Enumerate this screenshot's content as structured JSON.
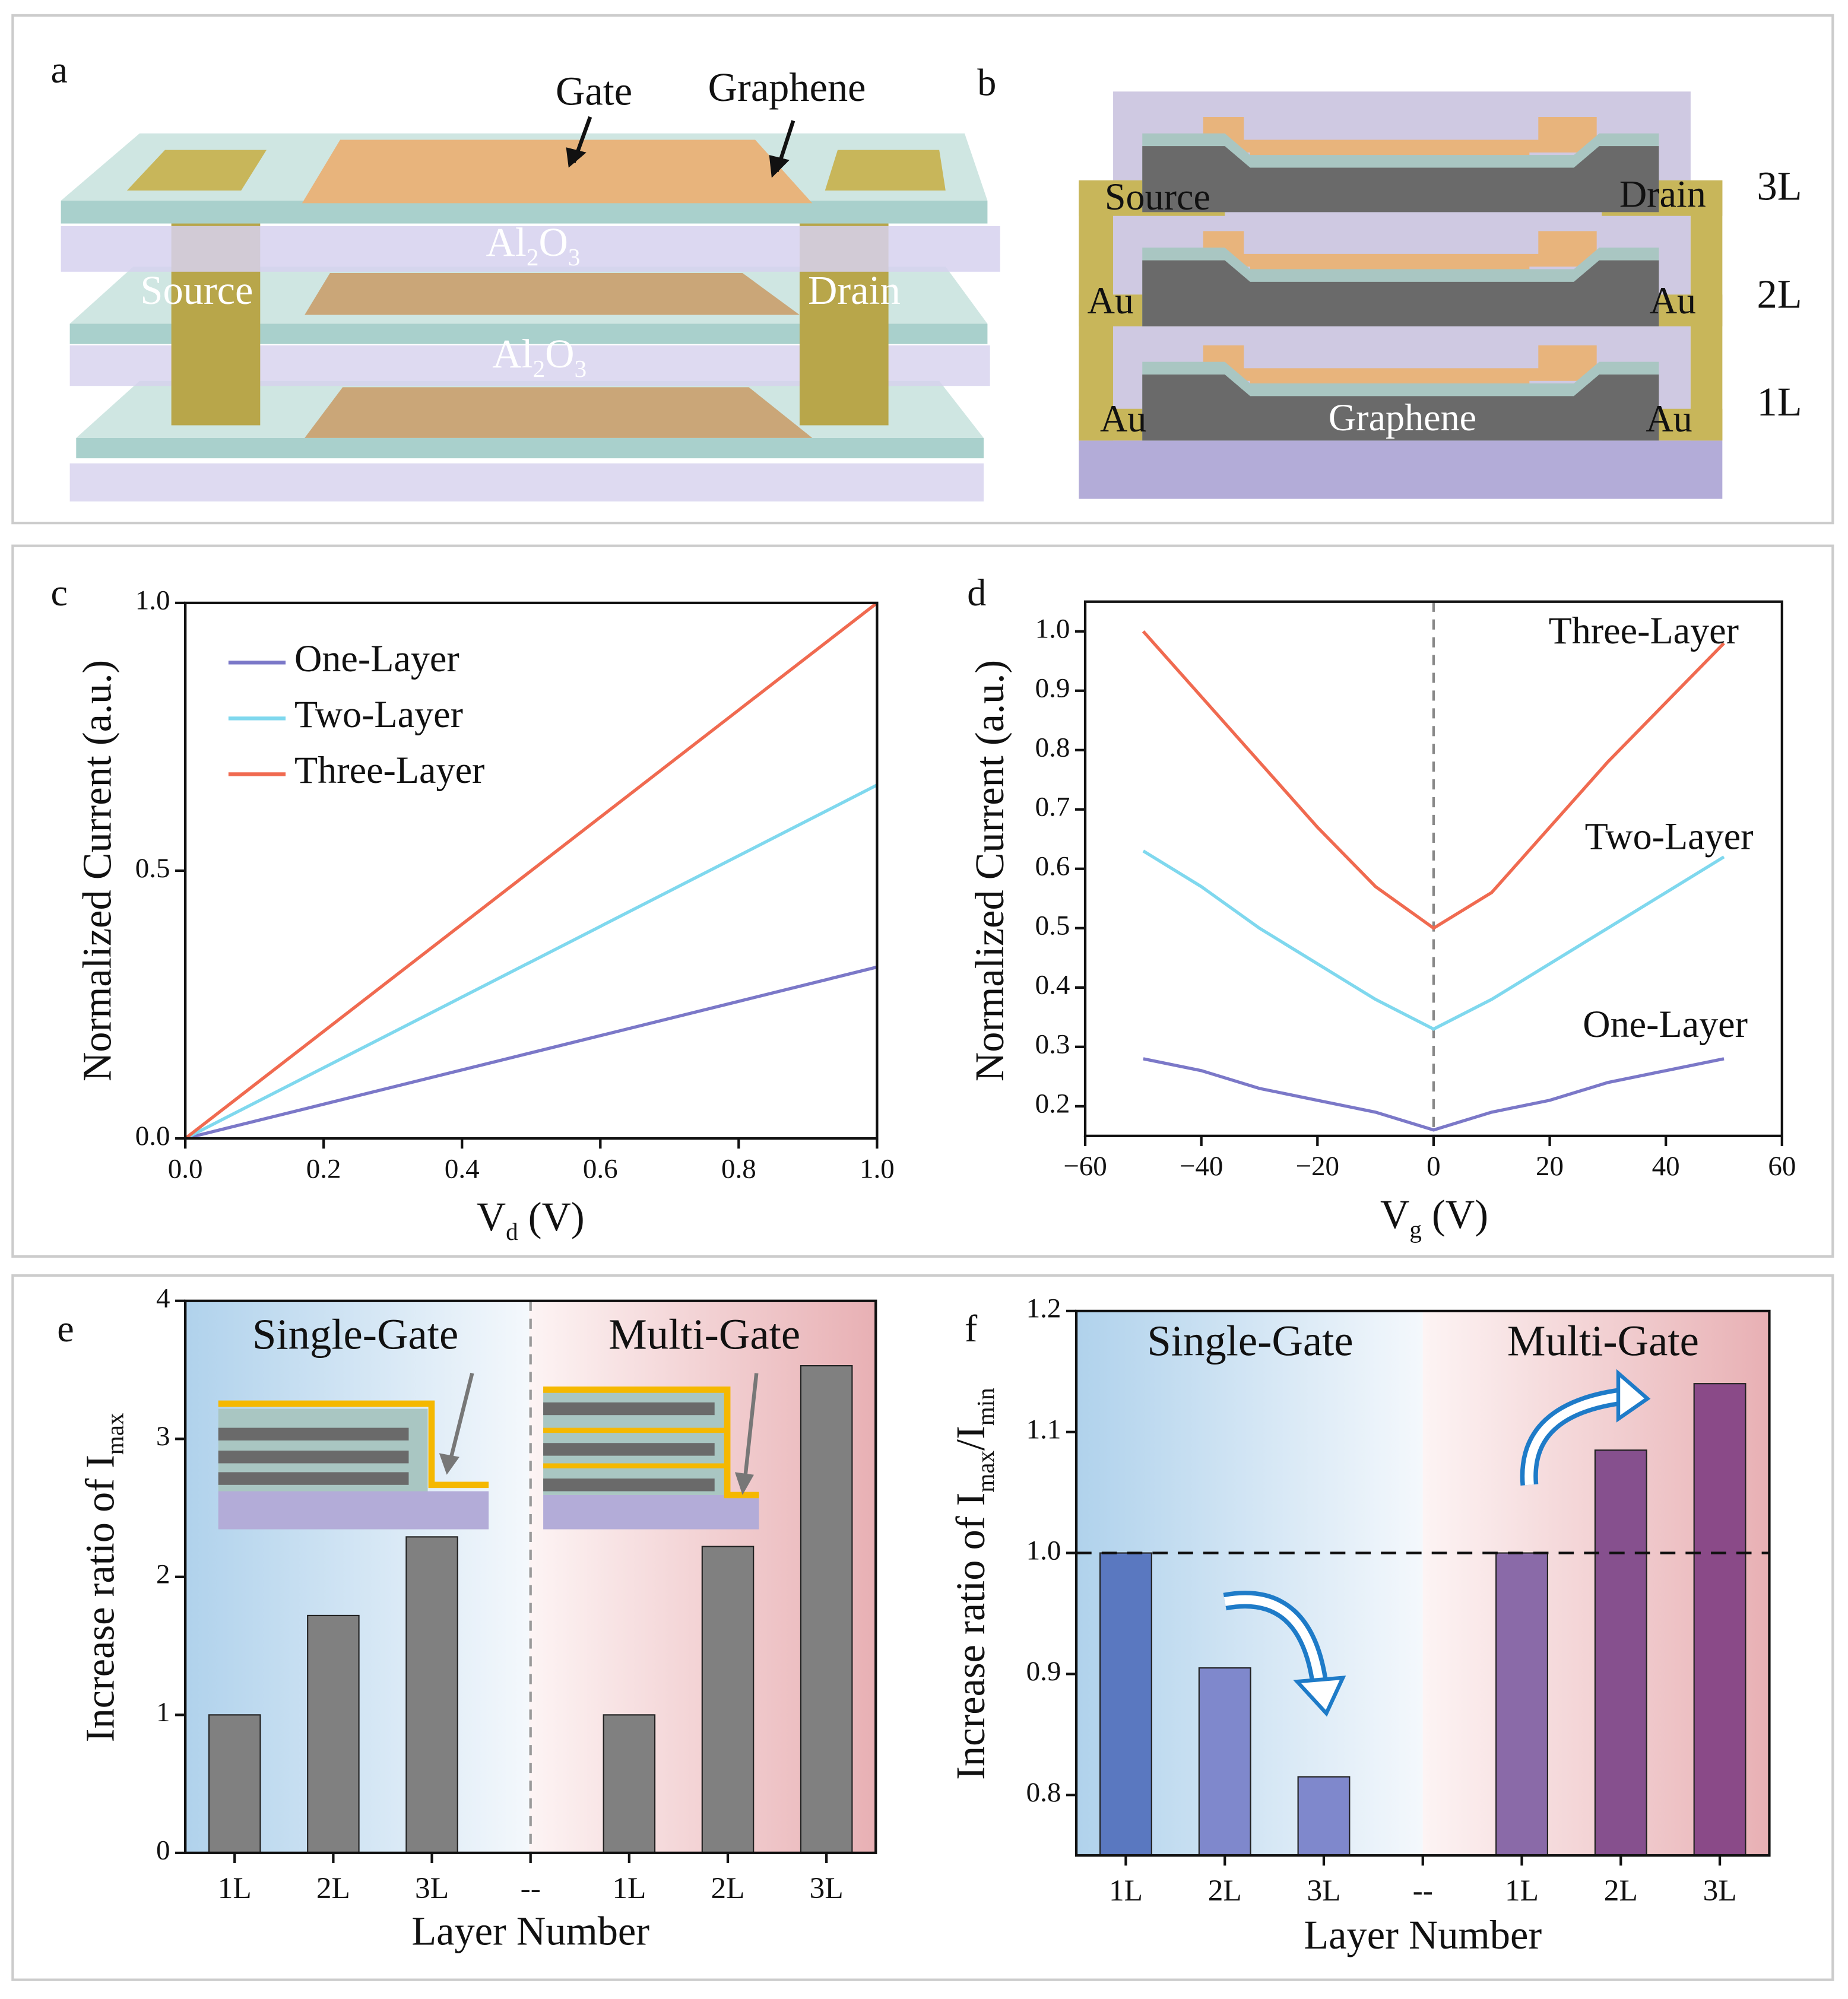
{
  "diagrams": [
    {
      "label": "a",
      "texts": [
        "Gate",
        "Graphene",
        "Source",
        "Drain"
      ],
      "oxide": [
        [
          "Al",
          "2",
          "O",
          "3"
        ],
        [
          "Al",
          "2",
          "O",
          "3"
        ]
      ]
    },
    {
      "label": "b",
      "texts": [
        "Source",
        "Drain",
        "3L",
        "Au",
        "Au",
        "2L",
        "Au",
        "Graphene",
        "Au",
        "1L"
      ]
    }
  ],
  "chart_data": [
    {
      "label": "c",
      "type": "line",
      "xlabel": [
        "V",
        "d",
        " (V)"
      ],
      "ylabel": "Normalized Current (a.u.)",
      "x": [
        0,
        0.2,
        0.4,
        0.6,
        0.8,
        1.0
      ],
      "series": [
        {
          "name": "One-Layer",
          "color": "#7b78c8",
          "values": [
            0,
            0.064,
            0.128,
            0.192,
            0.256,
            0.32
          ]
        },
        {
          "name": "Two-Layer",
          "color": "#7fd8ee",
          "values": [
            0,
            0.132,
            0.264,
            0.396,
            0.528,
            0.66
          ]
        },
        {
          "name": "Three-Layer",
          "color": "#f06a50",
          "values": [
            0,
            0.2,
            0.4,
            0.6,
            0.8,
            1.0
          ]
        }
      ],
      "xlim": [
        0,
        1
      ],
      "ylim": [
        0,
        1
      ],
      "xticks": [
        {
          "value": 0,
          "label": "0.0"
        },
        0.2,
        0.4,
        0.6,
        0.8,
        {
          "value": 1,
          "label": "1.0"
        }
      ],
      "yticks": [
        {
          "value": 0,
          "label": "0.0"
        },
        0.5,
        {
          "value": 1,
          "label": "1.0"
        }
      ],
      "legend": "upper left"
    },
    {
      "label": "d",
      "type": "line",
      "xlabel": [
        "V",
        "g",
        " (V)"
      ],
      "ylabel": "Normalized Current (a.u.)",
      "x": [
        -50,
        -40,
        -30,
        -20,
        -10,
        0,
        10,
        20,
        30,
        40,
        50
      ],
      "series": [
        {
          "name": "Three-Layer",
          "color": "#f06a50",
          "values": [
            1.0,
            0.89,
            0.78,
            0.67,
            0.57,
            0.5,
            0.56,
            0.67,
            0.78,
            0.88,
            0.98
          ]
        },
        {
          "name": "Two-Layer",
          "color": "#7fd8ee",
          "values": [
            0.63,
            0.57,
            0.5,
            0.44,
            0.38,
            0.33,
            0.38,
            0.44,
            0.5,
            0.56,
            0.62
          ]
        },
        {
          "name": "One-Layer",
          "color": "#7b78c8",
          "values": [
            0.28,
            0.26,
            0.23,
            0.21,
            0.19,
            0.16,
            0.19,
            0.21,
            0.24,
            0.26,
            0.28
          ]
        }
      ],
      "xlim": [
        -60,
        60
      ],
      "ylim": [
        0.15,
        1.05
      ],
      "xticks": [
        {
          "value": -60,
          "label": "−60"
        },
        {
          "value": -40,
          "label": "−40"
        },
        {
          "value": -20,
          "label": "−20"
        },
        0,
        20,
        40,
        60
      ],
      "yticks": [
        0.2,
        0.3,
        0.4,
        0.5,
        0.6,
        0.7,
        0.8,
        0.9,
        {
          "value": 1,
          "label": "1.0"
        }
      ],
      "vline": 0,
      "legend": "inline"
    },
    {
      "label": "e",
      "type": "bar",
      "xlabel": "Layer Number",
      "ylabel": [
        "Increase ratio of  I",
        "max"
      ],
      "categories": [
        "1L",
        "2L",
        "3L",
        "--",
        "1L",
        "2L",
        "3L"
      ],
      "values": [
        1.0,
        1.72,
        2.29,
        null,
        1.0,
        2.22,
        3.53
      ],
      "color": "#808080",
      "regions": [
        "Single-Gate",
        "Multi-Gate"
      ],
      "ylim": [
        0,
        4
      ],
      "yticks": [
        0,
        1,
        2,
        3,
        4
      ]
    },
    {
      "label": "f",
      "type": "bar",
      "xlabel": "Layer Number",
      "ylabel": [
        "Increase ratio of  I",
        "max",
        "/I",
        "min"
      ],
      "categories": [
        "1L",
        "2L",
        "3L",
        "--",
        "1L",
        "2L",
        "3L"
      ],
      "values": [
        1.0,
        0.905,
        0.815,
        null,
        1.0,
        1.085,
        1.14
      ],
      "colors": [
        "#5a78c0",
        "#7f88cc",
        "#7f88cc",
        null,
        "#8a6aa8",
        "#86508e",
        "#8a4a88"
      ],
      "regions": [
        "Single-Gate",
        "Multi-Gate"
      ],
      "ylim": [
        0.75,
        1.2
      ],
      "yticks": [
        0.8,
        0.9,
        {
          "value": 1,
          "label": "1.0"
        },
        1.1,
        1.2
      ],
      "reference_line": 1.0
    }
  ]
}
